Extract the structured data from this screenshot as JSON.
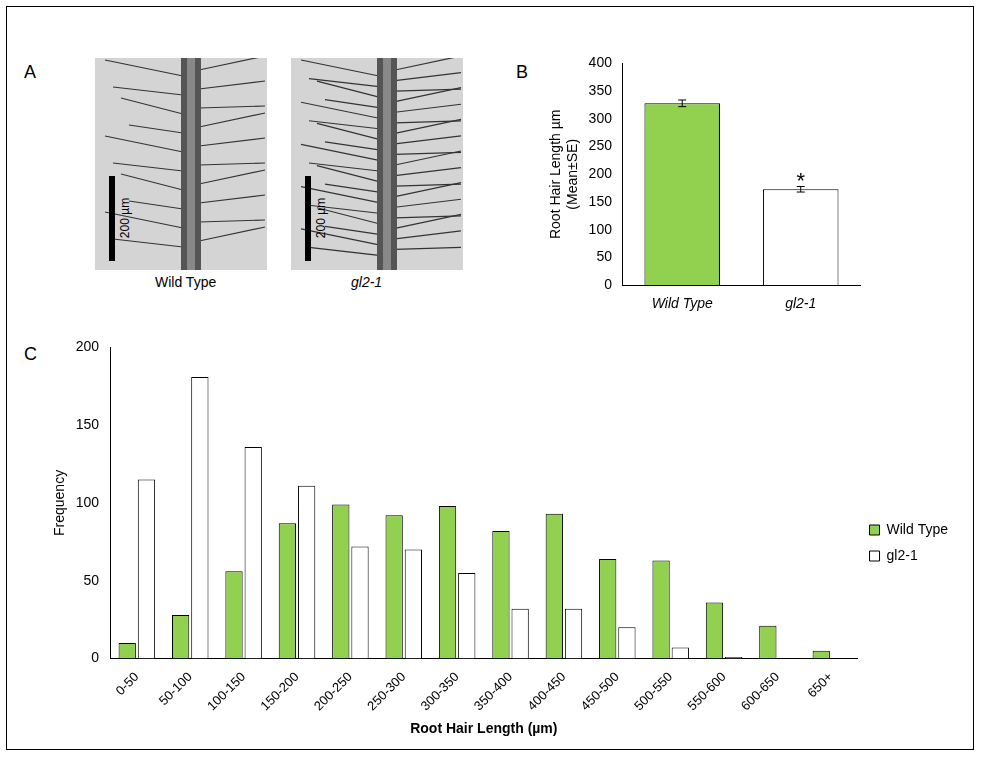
{
  "panels": [
    {
      "panel": "A",
      "images": [
        {
          "label": "Wild Type",
          "scale_bar": "200 µm"
        },
        {
          "label": "gl2-1",
          "scale_bar": "200 µm"
        }
      ]
    }
  ],
  "chart_data": [
    {
      "panel": "B",
      "type": "bar",
      "y_label": [
        "Root Hair Length µm",
        "(Mean±SE)"
      ],
      "categories": [
        "Wild Type",
        "gl2-1"
      ],
      "values": [
        328,
        173
      ],
      "errors": [
        6,
        5
      ],
      "colors": [
        "#92d050",
        "#ffffff"
      ],
      "annotations": [
        {
          "text": "*",
          "category": "gl2-1"
        }
      ],
      "ylim": [
        0,
        400
      ],
      "yticks": [
        0,
        50,
        100,
        150,
        200,
        250,
        300,
        350,
        400
      ],
      "grid": false
    },
    {
      "panel": "C",
      "type": "bar",
      "x_label": "Root Hair Length (µm)",
      "y_label": "Frequency",
      "categories": [
        "0-50",
        "50-100",
        "100-150",
        "150-200",
        "200-250",
        "250-300",
        "300-350",
        "350-400",
        "400-450",
        "450-500",
        "500-550",
        "550-600",
        "600-650",
        "650+"
      ],
      "series": [
        {
          "name": "Wild Type",
          "color": "#92d050",
          "values": [
            10,
            28,
            56,
            87,
            99,
            92,
            98,
            82,
            93,
            64,
            63,
            36,
            21,
            5
          ]
        },
        {
          "name": "gl2-1",
          "color": "#ffffff",
          "values": [
            115,
            181,
            136,
            111,
            72,
            70,
            55,
            32,
            32,
            20,
            7,
            1,
            0,
            0
          ]
        }
      ],
      "ylim": [
        0,
        200
      ],
      "yticks": [
        0,
        50,
        100,
        150,
        200
      ],
      "grid": false,
      "legend": "right"
    }
  ]
}
